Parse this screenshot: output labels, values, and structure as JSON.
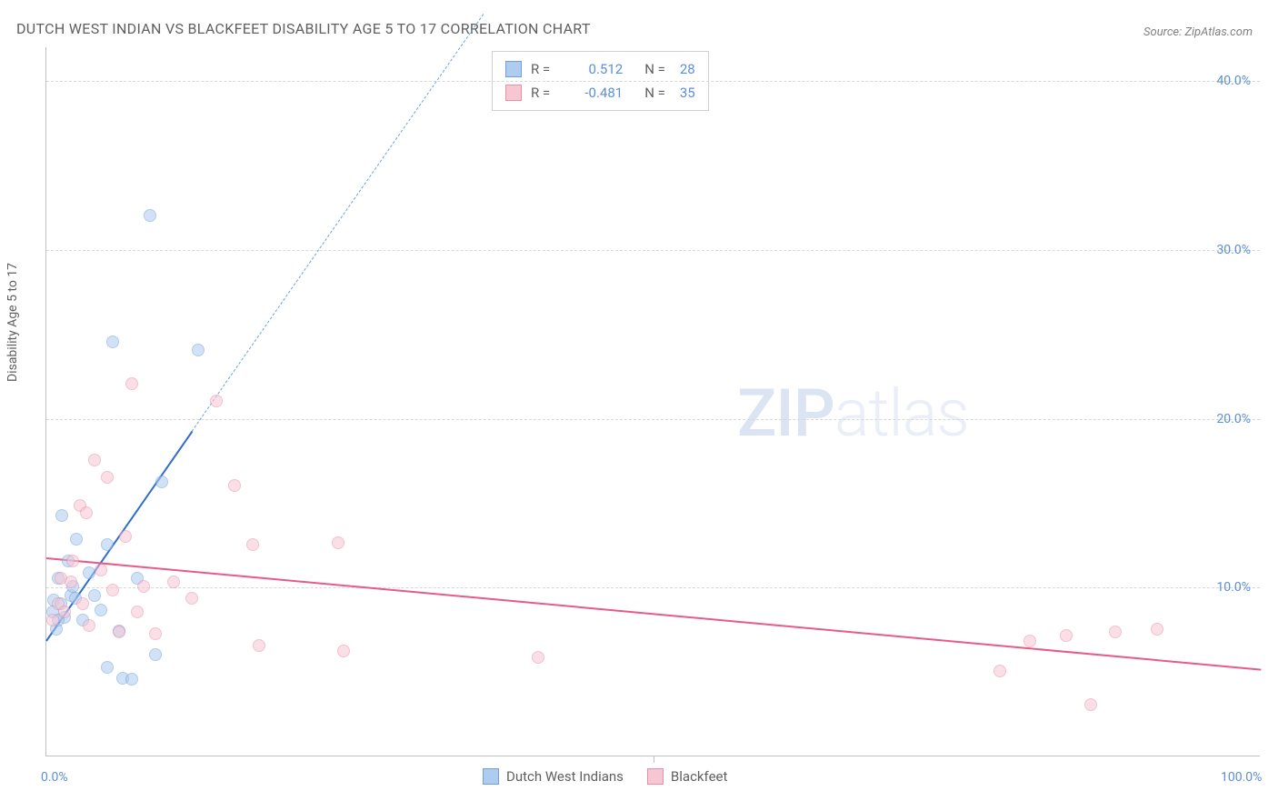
{
  "title": "DUTCH WEST INDIAN VS BLACKFEET DISABILITY AGE 5 TO 17 CORRELATION CHART",
  "source_label": "Source:",
  "source_value": "ZipAtlas.com",
  "y_axis_label": "Disability Age 5 to 17",
  "watermark_bold": "ZIP",
  "watermark_light": "atlas",
  "chart": {
    "type": "scatter",
    "xlim": [
      0,
      100
    ],
    "ylim": [
      0,
      42
    ],
    "x_ticks": [
      0,
      50,
      100
    ],
    "x_tick_labels": [
      "0.0%",
      "",
      "100.0%"
    ],
    "y_ticks": [
      10,
      20,
      30,
      40
    ],
    "y_tick_labels": [
      "10.0%",
      "20.0%",
      "30.0%",
      "40.0%"
    ],
    "grid_color": "#d8d8d8",
    "background_color": "#ffffff",
    "axis_color": "#c0c0c0",
    "tick_label_color": "#5b8fd6",
    "point_radius": 7,
    "point_opacity": 0.55,
    "series": [
      {
        "name": "Dutch West Indians",
        "fill_color": "#aeccf0",
        "stroke_color": "#6fa0dd",
        "r": 0.512,
        "n": 28,
        "trend": {
          "x1": 0,
          "y1": 6.9,
          "x2": 12,
          "y2": 19.3,
          "dash_to_x": 36,
          "dash_to_y": 44,
          "color": "#2f6fc9"
        },
        "points": [
          [
            0.5,
            8.5
          ],
          [
            0.6,
            9.2
          ],
          [
            0.8,
            7.5
          ],
          [
            1.0,
            10.5
          ],
          [
            1.2,
            9.0
          ],
          [
            1.3,
            14.2
          ],
          [
            1.5,
            8.2
          ],
          [
            1.8,
            11.5
          ],
          [
            2.0,
            9.5
          ],
          [
            2.2,
            10.0
          ],
          [
            2.4,
            9.3
          ],
          [
            2.5,
            12.8
          ],
          [
            3.0,
            8.0
          ],
          [
            3.5,
            10.8
          ],
          [
            4.0,
            9.5
          ],
          [
            4.5,
            8.6
          ],
          [
            5.0,
            5.2
          ],
          [
            5.0,
            12.5
          ],
          [
            5.5,
            24.5
          ],
          [
            6.0,
            7.4
          ],
          [
            6.3,
            4.6
          ],
          [
            7.0,
            4.5
          ],
          [
            7.5,
            10.5
          ],
          [
            8.5,
            32.0
          ],
          [
            9.0,
            6.0
          ],
          [
            9.5,
            16.2
          ],
          [
            12.5,
            24.0
          ],
          [
            1.0,
            8.0
          ]
        ]
      },
      {
        "name": "Blackfeet",
        "fill_color": "#f6c6d3",
        "stroke_color": "#e98fa9",
        "r": -0.481,
        "n": 35,
        "trend": {
          "x1": 0,
          "y1": 11.8,
          "x2": 100,
          "y2": 5.2,
          "color": "#e85a87"
        },
        "points": [
          [
            0.5,
            8.0
          ],
          [
            1.0,
            9.0
          ],
          [
            1.2,
            10.5
          ],
          [
            1.5,
            8.5
          ],
          [
            2.0,
            10.3
          ],
          [
            2.2,
            11.5
          ],
          [
            2.8,
            14.8
          ],
          [
            3.0,
            9.0
          ],
          [
            3.3,
            14.4
          ],
          [
            3.5,
            7.7
          ],
          [
            4.0,
            17.5
          ],
          [
            4.5,
            11.0
          ],
          [
            5.0,
            16.5
          ],
          [
            5.5,
            9.8
          ],
          [
            6.0,
            7.3
          ],
          [
            6.5,
            13.0
          ],
          [
            7.0,
            22.0
          ],
          [
            7.5,
            8.5
          ],
          [
            8.0,
            10.0
          ],
          [
            9.0,
            7.2
          ],
          [
            10.5,
            10.3
          ],
          [
            12.0,
            9.3
          ],
          [
            14.0,
            21.0
          ],
          [
            15.5,
            16.0
          ],
          [
            17.0,
            12.5
          ],
          [
            17.5,
            6.5
          ],
          [
            24.0,
            12.6
          ],
          [
            24.5,
            6.2
          ],
          [
            40.5,
            5.8
          ],
          [
            78.5,
            5.0
          ],
          [
            81.0,
            6.8
          ],
          [
            84.0,
            7.1
          ],
          [
            86.0,
            3.0
          ],
          [
            88.0,
            7.3
          ],
          [
            91.5,
            7.5
          ]
        ]
      }
    ]
  },
  "legend_top": {
    "r_label": "R =",
    "n_label": "N ="
  },
  "legend_bottom": [
    {
      "label": "Dutch West Indians",
      "fill": "#aeccf0",
      "stroke": "#6fa0dd"
    },
    {
      "label": "Blackfeet",
      "fill": "#f6c6d3",
      "stroke": "#e98fa9"
    }
  ]
}
